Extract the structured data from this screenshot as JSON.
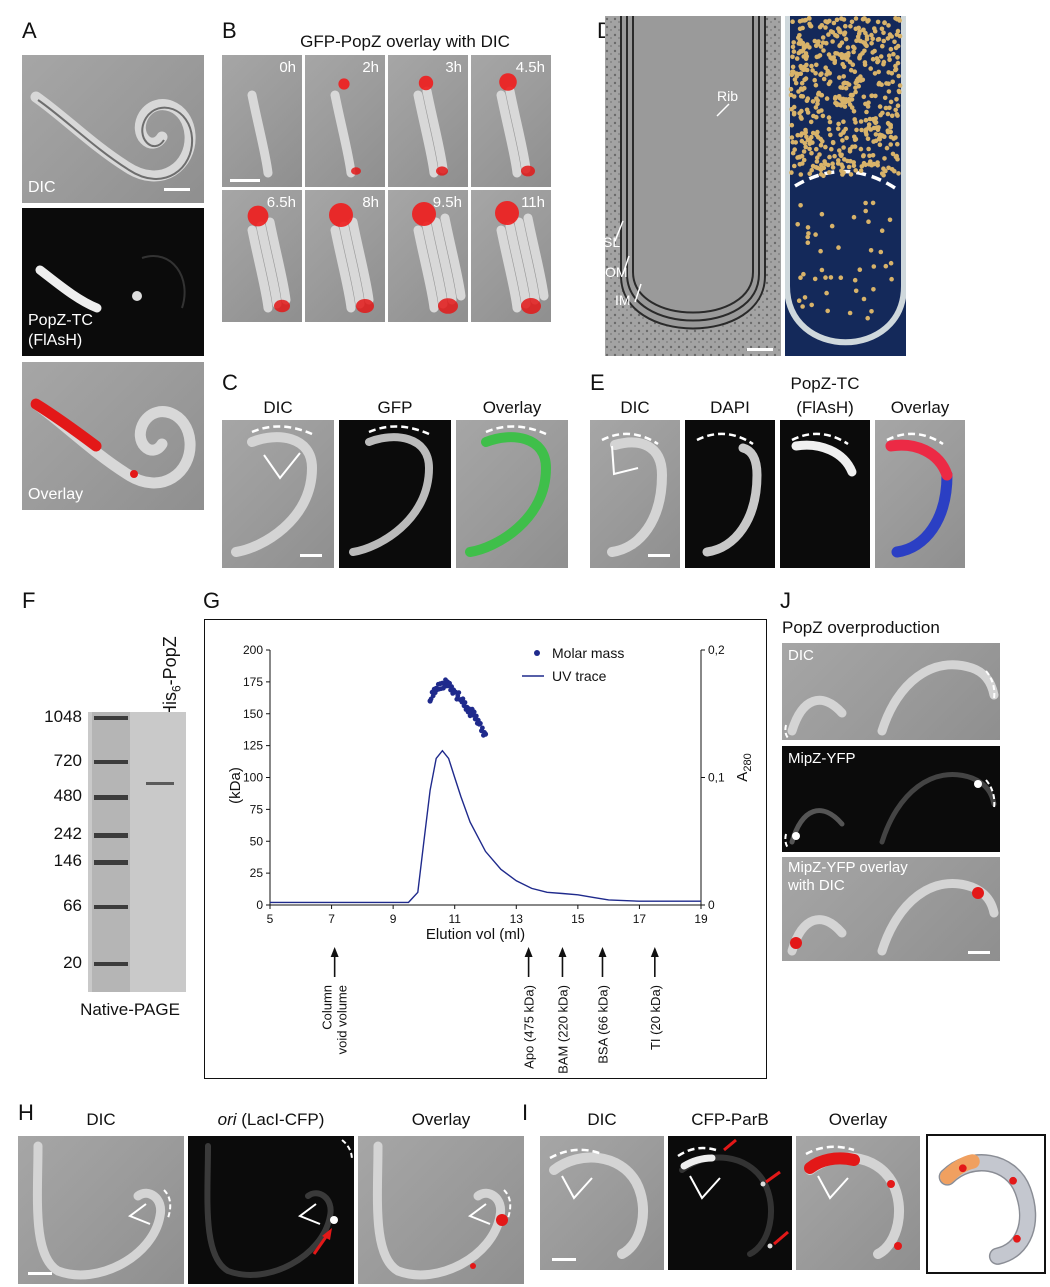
{
  "panel_labels": {
    "a": "A",
    "b": "B",
    "c": "C",
    "d": "D",
    "e": "E",
    "f": "F",
    "g": "G",
    "h": "H",
    "i": "I",
    "j": "J"
  },
  "panel_a": {
    "dic": "DIC",
    "popz1": "PopZ-TC",
    "popz2": "(FlAsH)",
    "overlay": "Overlay"
  },
  "panel_b": {
    "title": "GFP-PopZ overlay with DIC",
    "times": [
      "0h",
      "2h",
      "3h",
      "4.5h",
      "6.5h",
      "8h",
      "9.5h",
      "11h"
    ]
  },
  "panel_c": {
    "dic": "DIC",
    "gfp": "GFP",
    "overlay": "Overlay"
  },
  "panel_d": {
    "rib": "Rib",
    "sl": "SL",
    "om": "OM",
    "im": "IM"
  },
  "panel_e": {
    "dic": "DIC",
    "dapi": "DAPI",
    "popz1": "PopZ-TC",
    "popz2": "(FlAsH)",
    "overlay": "Overlay"
  },
  "panel_f": {
    "lane_label_main": "His",
    "lane_label_sub": "6",
    "lane_label_rest": "-PopZ",
    "markers": [
      "1048",
      "720",
      "480",
      "242",
      "146",
      "66",
      "20"
    ],
    "caption": "Native-PAGE"
  },
  "panel_h": {
    "dic": "DIC",
    "ori_italic": "ori",
    "ori_rest": " (LacI-CFP)",
    "overlay": "Overlay"
  },
  "panel_i": {
    "dic": "DIC",
    "cfp": "CFP-ParB",
    "overlay": "Overlay"
  },
  "panel_j": {
    "title": "PopZ overproduction",
    "dic": "DIC",
    "mipz": "MipZ-YFP",
    "ovl1": "MipZ-YFP overlay",
    "ovl2": "with DIC"
  },
  "chart_data": {
    "type": "scatter+line",
    "xlabel": "Elution vol (ml)",
    "ylabel": "(kDa)",
    "y2label_main": "A",
    "y2label_sub": "280",
    "xlim": [
      5,
      19
    ],
    "ylim": [
      0,
      200
    ],
    "y2lim": [
      0,
      0.2
    ],
    "xticks": [
      "5",
      "7",
      "9",
      "11",
      "13",
      "15",
      "17",
      "19"
    ],
    "yticks": [
      "0",
      "25",
      "50",
      "75",
      "100",
      "125",
      "150",
      "175",
      "200"
    ],
    "y2ticks": [
      "0",
      "0,1",
      "0,2"
    ],
    "legend": [
      "Molar mass",
      "UV trace"
    ],
    "legend_position": "top-right",
    "series_colors": {
      "molar_mass": "#1f2a8c",
      "uv": "#1f2a8c"
    },
    "molar_mass": {
      "x": [
        10.2,
        10.4,
        10.6,
        10.8,
        11.0,
        11.2,
        11.4,
        11.6,
        11.8,
        12.0
      ],
      "y": [
        160,
        170,
        174,
        172,
        167,
        161,
        155,
        149,
        142,
        134
      ]
    },
    "uv_trace": {
      "x": [
        5,
        9.5,
        9.8,
        10.0,
        10.2,
        10.4,
        10.6,
        10.8,
        11.0,
        11.2,
        11.5,
        12.0,
        12.5,
        13.0,
        13.5,
        14.0,
        14.5,
        15.0,
        15.5,
        16.0,
        17.0,
        18.0,
        19.0
      ],
      "y": [
        0.002,
        0.002,
        0.01,
        0.05,
        0.09,
        0.115,
        0.121,
        0.115,
        0.1,
        0.085,
        0.065,
        0.042,
        0.028,
        0.019,
        0.013,
        0.01,
        0.009,
        0.008,
        0.006,
        0.004,
        0.003,
        0.003,
        0.003
      ]
    },
    "markers": [
      {
        "x": 7.1,
        "label": "Column",
        "label2": "void volume"
      },
      {
        "x": 13.4,
        "label": "Apo (475 kDa)"
      },
      {
        "x": 14.5,
        "label": "BAM (220 kDa)"
      },
      {
        "x": 15.8,
        "label": "BSA (66 kDa)"
      },
      {
        "x": 17.5,
        "label": "TI (20 kDa)"
      }
    ]
  }
}
